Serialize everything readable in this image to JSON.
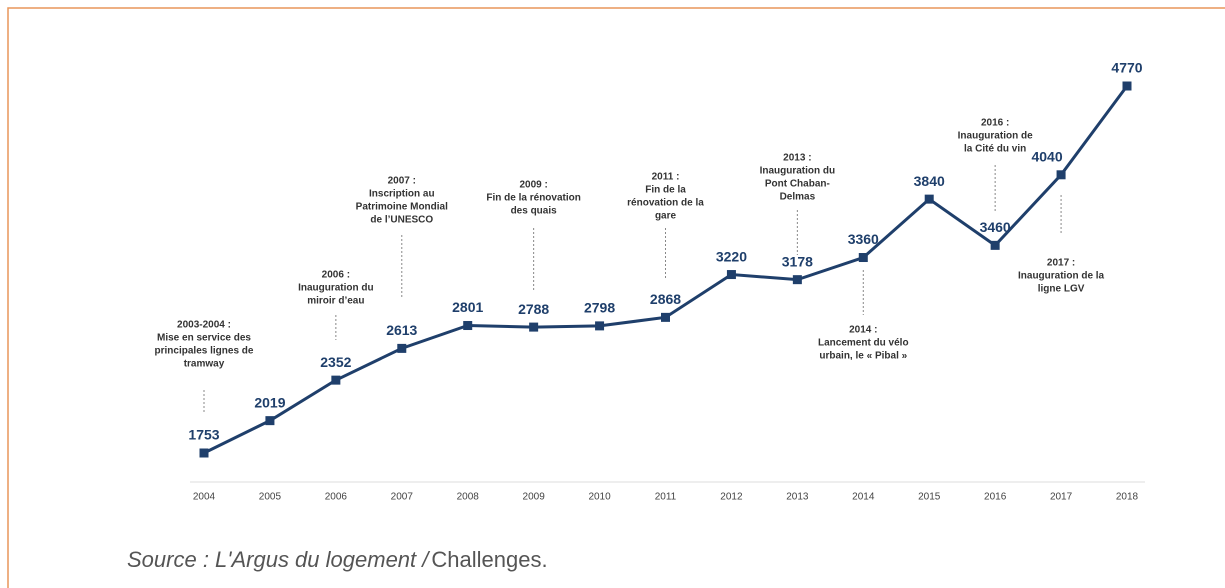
{
  "chart_data": {
    "type": "line",
    "categories": [
      "2004",
      "2005",
      "2006",
      "2007",
      "2008",
      "2009",
      "2010",
      "2011",
      "2012",
      "2013",
      "2014",
      "2015",
      "2016",
      "2017",
      "2018"
    ],
    "values": [
      1753,
      2019,
      2352,
      2613,
      2801,
      2788,
      2798,
      2868,
      3220,
      3178,
      3360,
      3840,
      3460,
      4040,
      4770
    ],
    "color": "#1f3f6b",
    "annotations": [
      {
        "year": "2004",
        "position": "above",
        "lines": [
          "2003-2004 :",
          "Mise en service des",
          "principales lignes de",
          "tramway"
        ]
      },
      {
        "year": "2006",
        "position": "above",
        "lines": [
          "2006 :",
          "Inauguration du",
          "miroir d’eau"
        ]
      },
      {
        "year": "2007",
        "position": "above",
        "lines": [
          "2007 :",
          "Inscription au",
          "Patrimoine Mondial",
          "de l’UNESCO"
        ]
      },
      {
        "year": "2009",
        "position": "above",
        "lines": [
          "2009 :",
          "Fin de la rénovation",
          "des quais"
        ]
      },
      {
        "year": "2011",
        "position": "above",
        "lines": [
          "2011 :",
          "Fin de la",
          "rénovation de la",
          "gare"
        ]
      },
      {
        "year": "2013",
        "position": "above",
        "lines": [
          "2013 :",
          "Inauguration du",
          "Pont Chaban-",
          "Delmas"
        ]
      },
      {
        "year": "2014",
        "position": "below",
        "lines": [
          "2014 :",
          "Lancement du vélo",
          "urbain, le « Pibal »"
        ]
      },
      {
        "year": "2016",
        "position": "above",
        "lines": [
          "2016 :",
          "Inauguration de",
          "la Cité du vin"
        ]
      },
      {
        "year": "2017",
        "position": "below",
        "lines": [
          "2017 :",
          "Inauguration de la",
          "ligne LGV"
        ]
      }
    ],
    "source": [
      "Source : L'Argus du logement /",
      "Challenges."
    ]
  }
}
